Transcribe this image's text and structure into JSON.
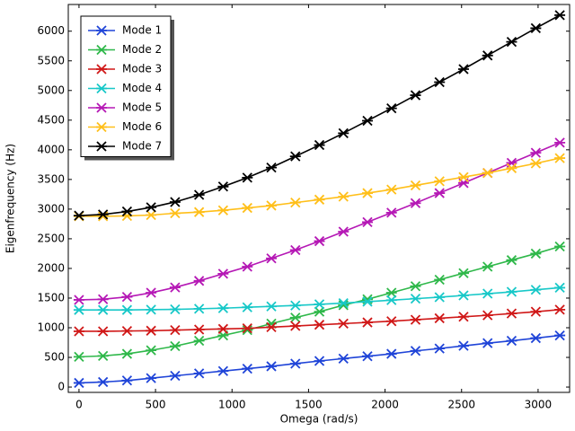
{
  "chart_data": {
    "type": "line",
    "xlabel": "Omega (rad/s)",
    "ylabel": "Eigenfrequency (Hz)",
    "x": [
      0,
      157,
      314,
      471,
      628,
      785,
      942,
      1100,
      1257,
      1414,
      1571,
      1728,
      1885,
      2042,
      2199,
      2356,
      2513,
      2670,
      2827,
      2985,
      3142
    ],
    "series": [
      {
        "name": "Mode 1",
        "color": "#1f44d8",
        "values": [
          70,
          85,
          110,
          150,
          190,
          230,
          270,
          310,
          350,
          395,
          440,
          480,
          520,
          560,
          610,
          650,
          695,
          740,
          780,
          825,
          870
        ]
      },
      {
        "name": "Mode 2",
        "color": "#2fb84a",
        "values": [
          510,
          525,
          560,
          620,
          690,
          780,
          870,
          960,
          1070,
          1170,
          1270,
          1380,
          1480,
          1590,
          1700,
          1810,
          1920,
          2030,
          2140,
          2250,
          2370
        ]
      },
      {
        "name": "Mode 3",
        "color": "#d01818",
        "values": [
          940,
          940,
          945,
          950,
          960,
          970,
          980,
          990,
          1010,
          1030,
          1050,
          1070,
          1090,
          1110,
          1135,
          1160,
          1185,
          1210,
          1240,
          1270,
          1305
        ]
      },
      {
        "name": "Mode 4",
        "color": "#18c8c8",
        "values": [
          1300,
          1300,
          1300,
          1305,
          1310,
          1320,
          1330,
          1345,
          1360,
          1375,
          1395,
          1415,
          1440,
          1465,
          1490,
          1515,
          1545,
          1575,
          1605,
          1640,
          1675
        ]
      },
      {
        "name": "Mode 5",
        "color": "#b518b5",
        "values": [
          1470,
          1480,
          1520,
          1590,
          1680,
          1790,
          1910,
          2030,
          2170,
          2310,
          2460,
          2620,
          2780,
          2940,
          3100,
          3270,
          3440,
          3610,
          3780,
          3950,
          4120
        ]
      },
      {
        "name": "Mode 6",
        "color": "#ffbf1a",
        "values": [
          2880,
          2880,
          2885,
          2900,
          2930,
          2950,
          2980,
          3020,
          3060,
          3110,
          3160,
          3210,
          3270,
          3330,
          3400,
          3470,
          3540,
          3610,
          3690,
          3770,
          3860
        ]
      },
      {
        "name": "Mode 7",
        "color": "#000000",
        "values": [
          2890,
          2910,
          2960,
          3030,
          3120,
          3240,
          3380,
          3530,
          3700,
          3890,
          4080,
          4280,
          4490,
          4700,
          4920,
          5140,
          5360,
          5590,
          5820,
          6050,
          6270
        ]
      }
    ],
    "xlim": [
      -70,
      3206
    ],
    "ylim": [
      -90,
      6450
    ],
    "xticks": [
      0,
      500,
      1000,
      1500,
      2000,
      2500,
      3000
    ],
    "yticks": [
      0,
      500,
      1000,
      1500,
      2000,
      2500,
      3000,
      3500,
      4000,
      4500,
      5000,
      5500,
      6000
    ],
    "grid": false,
    "legend": "upper left"
  }
}
